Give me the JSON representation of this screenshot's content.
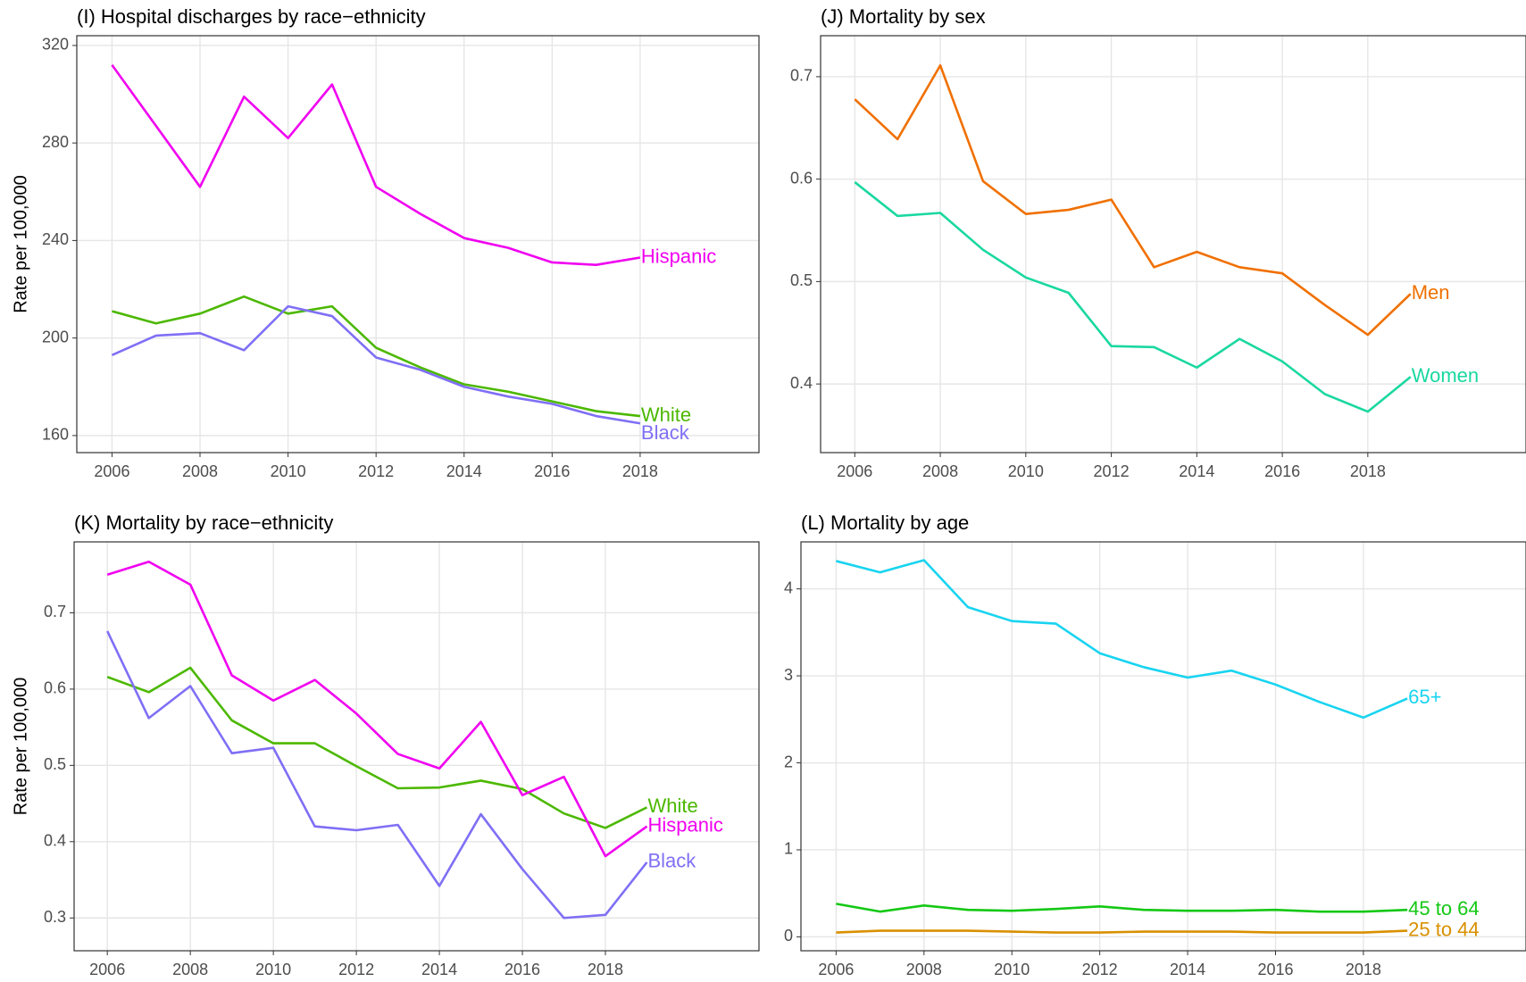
{
  "chart_data": [
    {
      "type": "line",
      "title": "(I) Hospital discharges by race−ethnicity",
      "ylabel": "Rate per 100,000",
      "x": [
        2006,
        2007,
        2008,
        2009,
        2010,
        2011,
        2012,
        2013,
        2014,
        2015,
        2016,
        2017,
        2018
      ],
      "xlim": [
        2005.2,
        2020.7
      ],
      "xticks": [
        2006,
        2008,
        2010,
        2012,
        2014,
        2016,
        2018
      ],
      "ylim": [
        153,
        324
      ],
      "yticks": [
        160,
        200,
        240,
        280,
        320
      ],
      "grid": true,
      "series": [
        {
          "name": "Hispanic",
          "color": "#f000f0",
          "values": [
            312,
            287,
            262,
            299,
            282,
            304,
            262,
            251,
            241,
            237,
            231,
            230,
            233
          ]
        },
        {
          "name": "White",
          "color": "#4cb800",
          "values": [
            211,
            206,
            210,
            217,
            210,
            213,
            196,
            188,
            181,
            178,
            174,
            170,
            168
          ]
        },
        {
          "name": "Black",
          "color": "#7f6ff5",
          "values": [
            193,
            201,
            202,
            195,
            213,
            209,
            192,
            187,
            180,
            176,
            173,
            168,
            165
          ]
        }
      ]
    },
    {
      "type": "line",
      "title": "(J) Mortality by sex",
      "x": [
        2006,
        2007,
        2008,
        2009,
        2010,
        2011,
        2012,
        2013,
        2014,
        2015,
        2016,
        2017,
        2018,
        2019
      ],
      "xlim": [
        2005.2,
        2021.7
      ],
      "xticks": [
        2006,
        2008,
        2010,
        2012,
        2014,
        2016,
        2018
      ],
      "ylim": [
        0.333,
        0.74
      ],
      "yticks": [
        0.4,
        0.5,
        0.6,
        0.7
      ],
      "grid": true,
      "series": [
        {
          "name": "Men",
          "color": "#f07000",
          "values": [
            0.678,
            0.639,
            0.711,
            0.598,
            0.566,
            0.57,
            0.58,
            0.514,
            0.529,
            0.514,
            0.508,
            0.477,
            0.448,
            0.488
          ]
        },
        {
          "name": "Women",
          "color": "#1ad8a0",
          "values": [
            0.597,
            0.564,
            0.567,
            0.531,
            0.504,
            0.489,
            0.437,
            0.436,
            0.416,
            0.444,
            0.422,
            0.39,
            0.373,
            0.407
          ]
        }
      ]
    },
    {
      "type": "line",
      "title": "(K) Mortality by race−ethnicity",
      "ylabel": "Rate per 100,000",
      "x": [
        2006,
        2007,
        2008,
        2009,
        2010,
        2011,
        2012,
        2013,
        2014,
        2015,
        2016,
        2017,
        2018,
        2019
      ],
      "xlim": [
        2005.2,
        2021.7
      ],
      "xticks": [
        2006,
        2008,
        2010,
        2012,
        2014,
        2016,
        2018
      ],
      "ylim": [
        0.257,
        0.793
      ],
      "yticks": [
        0.3,
        0.4,
        0.5,
        0.6,
        0.7
      ],
      "grid": true,
      "series": [
        {
          "name": "White",
          "color": "#4cb800",
          "values": [
            0.616,
            0.596,
            0.628,
            0.559,
            0.529,
            0.529,
            0.499,
            0.47,
            0.471,
            0.48,
            0.469,
            0.437,
            0.418,
            0.445
          ]
        },
        {
          "name": "Hispanic",
          "color": "#f000f0",
          "values": [
            0.75,
            0.767,
            0.737,
            0.618,
            0.585,
            0.612,
            0.568,
            0.515,
            0.496,
            0.557,
            0.461,
            0.485,
            0.381,
            0.42
          ]
        },
        {
          "name": "Black",
          "color": "#7f6ff5",
          "values": [
            0.676,
            0.562,
            0.604,
            0.516,
            0.523,
            0.42,
            0.415,
            0.422,
            0.342,
            0.436,
            0.364,
            0.3,
            0.304,
            0.373
          ]
        }
      ]
    },
    {
      "type": "line",
      "title": "(L) Mortality by age",
      "x": [
        2006,
        2007,
        2008,
        2009,
        2010,
        2011,
        2012,
        2013,
        2014,
        2015,
        2016,
        2017,
        2018,
        2019
      ],
      "xlim": [
        2005.2,
        2021.7
      ],
      "xticks": [
        2006,
        2008,
        2010,
        2012,
        2014,
        2016,
        2018
      ],
      "ylim": [
        -0.16,
        4.54
      ],
      "yticks": [
        0,
        1,
        2,
        3,
        4
      ],
      "grid": true,
      "series": [
        {
          "name": "65+",
          "color": "#18d4f0",
          "values": [
            4.32,
            4.19,
            4.33,
            3.79,
            3.63,
            3.6,
            3.26,
            3.1,
            2.98,
            3.06,
            2.9,
            2.7,
            2.52,
            2.74
          ]
        },
        {
          "name": "45 to 64",
          "color": "#14c814",
          "values": [
            0.38,
            0.29,
            0.36,
            0.31,
            0.3,
            0.32,
            0.35,
            0.31,
            0.3,
            0.3,
            0.31,
            0.29,
            0.29,
            0.31
          ]
        },
        {
          "name": "25 to 44",
          "color": "#d99000",
          "values": [
            0.05,
            0.07,
            0.07,
            0.07,
            0.06,
            0.05,
            0.05,
            0.06,
            0.06,
            0.06,
            0.05,
            0.05,
            0.05,
            0.07
          ]
        }
      ]
    }
  ]
}
